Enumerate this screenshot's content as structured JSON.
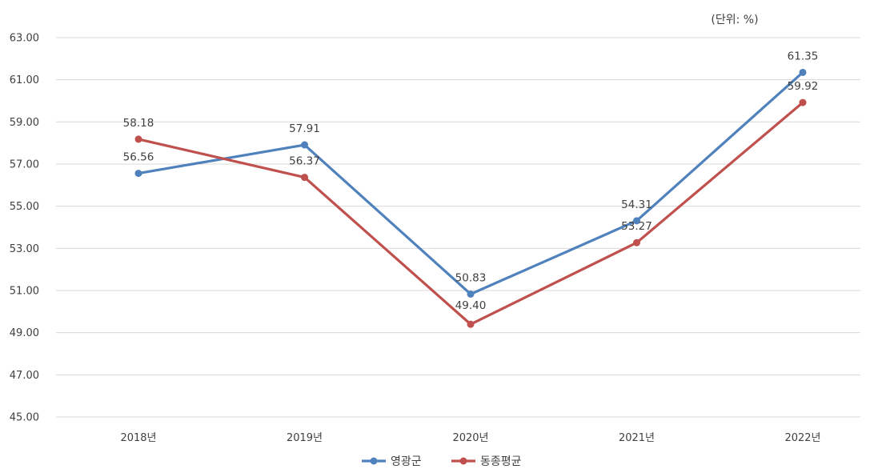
{
  "chart_data": {
    "type": "line",
    "unit_note": "(단위: %)",
    "categories": [
      "2018년",
      "2019년",
      "2020년",
      "2021년",
      "2022년"
    ],
    "ylim": [
      45,
      63
    ],
    "yticks": [
      "63.00",
      "61.00",
      "59.00",
      "57.00",
      "55.00",
      "53.00",
      "51.00",
      "49.00",
      "47.00",
      "45.00"
    ],
    "grid": true,
    "legend_position": "bottom",
    "series": [
      {
        "name": "영광군",
        "color": "#4f81bd",
        "values": [
          56.56,
          57.91,
          50.83,
          54.31,
          61.35
        ],
        "labels": [
          "56.56",
          "57.91",
          "50.83",
          "54.31",
          "61.35"
        ]
      },
      {
        "name": "동종평균",
        "color": "#c0504d",
        "values": [
          58.18,
          56.37,
          49.4,
          53.27,
          59.92
        ],
        "labels": [
          "58.18",
          "56.37",
          "49.40",
          "53.27",
          "59.92"
        ]
      }
    ]
  }
}
